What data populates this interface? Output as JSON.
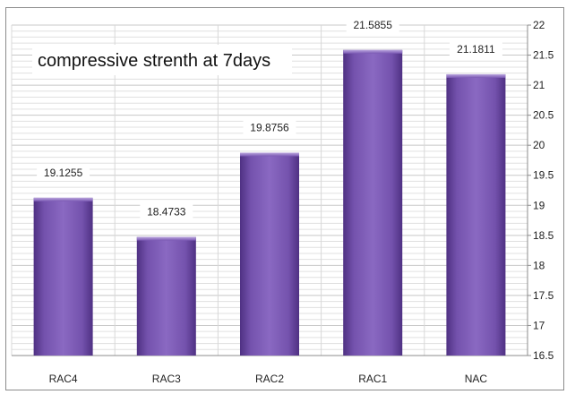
{
  "chart_data": {
    "type": "bar",
    "title": "compressive strenth at 7days",
    "categories": [
      "RAC4",
      "RAC3",
      "RAC2",
      "RAC1",
      "NAC"
    ],
    "values": [
      19.1255,
      18.4733,
      19.8756,
      21.5855,
      21.1811
    ],
    "value_labels": [
      "19.1255",
      "18.4733",
      "19.8756",
      "21.5855",
      "21.1811"
    ],
    "ylim": [
      16.5,
      22
    ],
    "yticks": [
      "16.5",
      "17",
      "17.5",
      "18",
      "18.5",
      "19",
      "19.5",
      "20",
      "20.5",
      "21",
      "21.5",
      "22"
    ],
    "y_axis_side": "right",
    "grid": true,
    "bar_color": "#7b55b5",
    "xlabel": "",
    "ylabel": ""
  }
}
